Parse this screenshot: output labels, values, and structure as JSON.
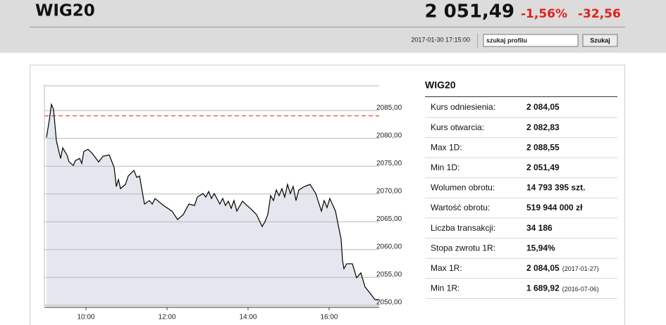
{
  "header": {
    "title": "WIG20",
    "price": "2 051,49",
    "change_pct": "-1,56%",
    "change": "-32,56",
    "timestamp": "2017-01-30 17:15:00",
    "search_placeholder": "szukaj profilu",
    "search_button": "Szukaj"
  },
  "chart_data": {
    "type": "line",
    "color": "#000000",
    "area_color": "#e4e7ee",
    "reference_line": 2084.05,
    "reference_color": "#e8332c",
    "x": [
      9.026,
      9.096,
      9.148,
      9.2,
      9.27,
      9.374,
      9.426,
      9.53,
      9.583,
      9.687,
      9.739,
      9.843,
      9.896,
      9.948,
      10.052,
      10.157,
      10.313,
      10.417,
      10.574,
      10.696,
      10.748,
      10.8,
      10.852,
      10.974,
      11.043,
      11.183,
      11.252,
      11.322,
      11.443,
      11.565,
      11.635,
      11.704,
      11.913,
      12.122,
      12.261,
      12.4,
      12.539,
      12.678,
      12.748,
      12.887,
      12.957,
      13.026,
      13.096,
      13.165,
      13.304,
      13.374,
      13.443,
      13.513,
      13.583,
      13.652,
      13.722,
      13.861,
      14.07,
      14.209,
      14.348,
      14.417,
      14.487,
      14.557,
      14.626,
      14.696,
      14.765,
      14.835,
      14.904,
      14.974,
      15.043,
      15.113,
      15.183,
      15.252,
      15.391,
      15.53,
      15.67,
      15.809,
      15.878,
      15.948,
      16.017,
      16.157,
      16.226,
      16.296,
      16.33,
      16.365,
      16.435,
      16.574,
      16.678,
      16.783,
      16.887,
      17.026,
      17.13,
      17.235
    ],
    "values": [
      2080.18,
      2083.33,
      2086.11,
      2085.23,
      2079.54,
      2076.39,
      2078.28,
      2077.02,
      2075.76,
      2075.13,
      2076.01,
      2076.39,
      2075.5,
      2077.65,
      2078.03,
      2077.27,
      2075.76,
      2076.77,
      2077.02,
      2074.75,
      2071.34,
      2072.6,
      2070.96,
      2071.72,
      2073.23,
      2074.24,
      2072.98,
      2073.23,
      2068.18,
      2068.81,
      2068.18,
      2069.19,
      2067.93,
      2066.92,
      2065.4,
      2066.29,
      2068.18,
      2067.93,
      2069.44,
      2070.08,
      2069.44,
      2070.45,
      2069.19,
      2070.08,
      2068.18,
      2069.19,
      2067.93,
      2068.69,
      2067.42,
      2068.81,
      2066.92,
      2068.69,
      2067.3,
      2066.29,
      2064.14,
      2065.02,
      2066.29,
      2069.7,
      2068.81,
      2070.71,
      2069.7,
      2070.96,
      2069.44,
      2071.72,
      2070.08,
      2071.34,
      2068.81,
      2070.71,
      2071.34,
      2071.72,
      2070.08,
      2066.92,
      2068.81,
      2067.55,
      2069.19,
      2066.92,
      2064.39,
      2061.87,
      2058.08,
      2056.57,
      2057.45,
      2057.45,
      2054.92,
      2055.81,
      2053.28,
      2052.02,
      2051.01,
      2051.01
    ],
    "xlim": [
      8.974,
      17.235
    ],
    "xticks": [
      {
        "value": 10,
        "label": "10:00"
      },
      {
        "value": 12,
        "label": "12:00"
      },
      {
        "value": 14,
        "label": "14:00"
      },
      {
        "value": 16,
        "label": "16:00"
      }
    ],
    "ylim": [
      2049.6,
      2089.7
    ],
    "yticks": [
      {
        "value": 2050,
        "label": "2050,00"
      },
      {
        "value": 2055,
        "label": "2055,00"
      },
      {
        "value": 2060,
        "label": "2060,00"
      },
      {
        "value": 2065,
        "label": "2065,00"
      },
      {
        "value": 2070,
        "label": "2070,00"
      },
      {
        "value": 2075,
        "label": "2075,00"
      },
      {
        "value": 2080,
        "label": "2080,00"
      },
      {
        "value": 2085,
        "label": "2085,00"
      }
    ],
    "grid": true
  },
  "table": {
    "title": "WIG20",
    "rows": [
      {
        "label": "Kurs odniesienia:",
        "value": "2 084,05"
      },
      {
        "label": "Kurs otwarcia:",
        "value": "2 082,83"
      },
      {
        "label": "Max 1D:",
        "value": "2 088,55"
      },
      {
        "label": "Min 1D:",
        "value": "2 051,49"
      },
      {
        "label": "Wolumen obrotu:",
        "value": "14 793 395 szt."
      },
      {
        "label": "Wartość obrotu:",
        "value": "519 944 000 zł"
      },
      {
        "label": "Liczba transakcji:",
        "value": "34 186"
      },
      {
        "label": "Stopa zwrotu 1R:",
        "value": "15,94%"
      },
      {
        "label": "Max 1R:",
        "value": "2 084,05",
        "note": "(2017-01-27)"
      },
      {
        "label": "Min 1R:",
        "value": "1 689,92",
        "note": "(2016-07-06)"
      }
    ]
  }
}
